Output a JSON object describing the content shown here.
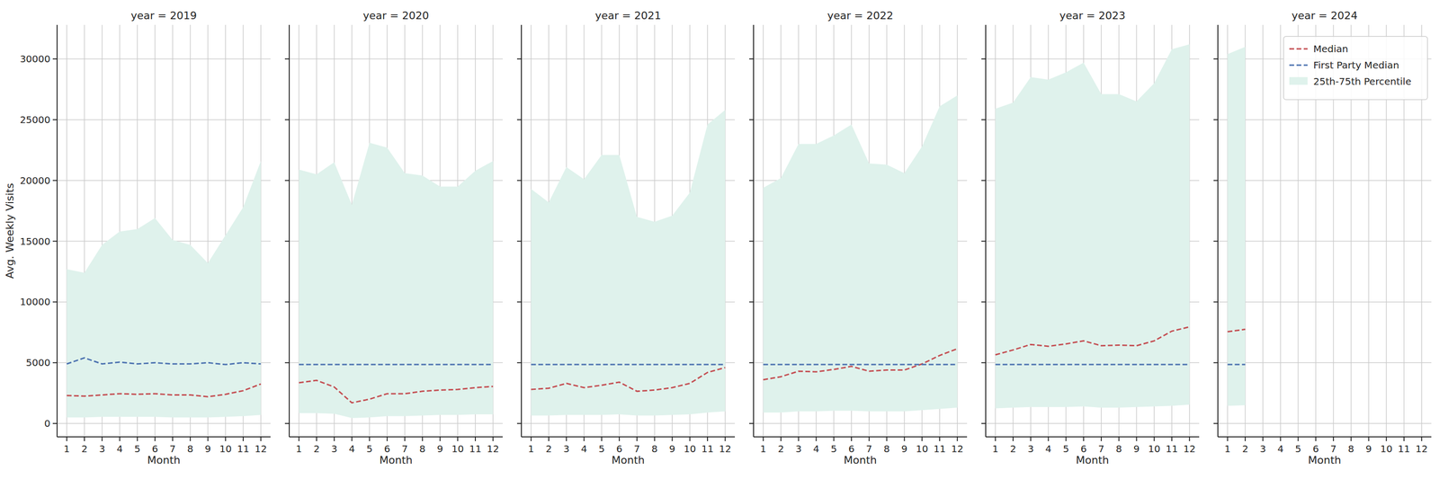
{
  "chart_data": {
    "type": "line",
    "ylabel": "Avg. Weekly Visits",
    "xlabel": "Month",
    "x": [
      1,
      2,
      3,
      4,
      5,
      6,
      7,
      8,
      9,
      10,
      11,
      12
    ],
    "xlim": [
      0.45,
      12.55
    ],
    "xticks": [
      1,
      2,
      3,
      4,
      5,
      6,
      7,
      8,
      9,
      10,
      11,
      12
    ],
    "ylim": [
      -1100,
      32800
    ],
    "yticks": [
      0,
      5000,
      10000,
      15000,
      20000,
      25000,
      30000
    ],
    "grid": true,
    "legend": "upper right",
    "series": [
      {
        "name": "Median",
        "color": "#c44e52",
        "line_style": "dashed",
        "type": "line"
      },
      {
        "name": "First Party Median",
        "color": "#4c72b0",
        "line_style": "dashed",
        "type": "line"
      },
      {
        "name": "25th-75th Percentile",
        "color": "#dff2ec",
        "type": "band"
      }
    ],
    "panels": [
      {
        "title": "year = 2019",
        "series": [
          {
            "values": [
              2300,
              2250,
              2350,
              2450,
              2400,
              2450,
              2350,
              2350,
              2200,
              2400,
              2700,
              3250
            ]
          },
          {
            "values": [
              4900,
              5400,
              4900,
              5050,
              4900,
              5000,
              4900,
              4900,
              5000,
              4850,
              5000,
              4900
            ]
          },
          {
            "lower": [
              500,
              500,
              550,
              550,
              550,
              550,
              500,
              500,
              500,
              550,
              600,
              700
            ],
            "upper": [
              12700,
              12400,
              14700,
              15800,
              16000,
              16900,
              15100,
              14700,
              13200,
              15500,
              17800,
              21600
            ]
          }
        ]
      },
      {
        "title": "year = 2020",
        "series": [
          {
            "values": [
              3350,
              3550,
              3000,
              1700,
              2000,
              2450,
              2450,
              2650,
              2750,
              2800,
              2950,
              3050
            ]
          },
          {
            "values": [
              4850,
              4850,
              4850,
              4850,
              4850,
              4850,
              4850,
              4850,
              4850,
              4850,
              4850,
              4850
            ]
          },
          {
            "lower": [
              850,
              850,
              800,
              450,
              500,
              600,
              600,
              650,
              700,
              700,
              750,
              750
            ],
            "upper": [
              20900,
              20500,
              21500,
              18000,
              23100,
              22700,
              20600,
              20400,
              19500,
              19500,
              20800,
              21600
            ]
          }
        ]
      },
      {
        "title": "year = 2021",
        "series": [
          {
            "values": [
              2800,
              2900,
              3300,
              2950,
              3150,
              3400,
              2650,
              2750,
              2950,
              3300,
              4200,
              4600
            ]
          },
          {
            "values": [
              4850,
              4850,
              4850,
              4850,
              4850,
              4850,
              4850,
              4850,
              4850,
              4850,
              4850,
              4850
            ]
          },
          {
            "lower": [
              650,
              650,
              700,
              700,
              700,
              750,
              650,
              650,
              700,
              750,
              900,
              1000
            ],
            "upper": [
              19300,
              18200,
              21100,
              20100,
              22100,
              22100,
              17000,
              16600,
              17100,
              19000,
              24600,
              25800
            ]
          }
        ]
      },
      {
        "title": "year = 2022",
        "series": [
          {
            "values": [
              3600,
              3850,
              4300,
              4250,
              4450,
              4700,
              4300,
              4400,
              4400,
              4900,
              5600,
              6150
            ]
          },
          {
            "values": [
              4850,
              4850,
              4850,
              4850,
              4850,
              4850,
              4850,
              4850,
              4850,
              4850,
              4850,
              4850
            ]
          },
          {
            "lower": [
              900,
              900,
              1000,
              1000,
              1050,
              1050,
              1000,
              1000,
              1000,
              1100,
              1200,
              1300
            ],
            "upper": [
              19400,
              20200,
              23000,
              23000,
              23700,
              24600,
              21400,
              21300,
              20600,
              22800,
              26100,
              27000
            ]
          }
        ]
      },
      {
        "title": "year = 2023",
        "series": [
          {
            "values": [
              5650,
              6050,
              6500,
              6350,
              6550,
              6800,
              6400,
              6450,
              6400,
              6800,
              7600,
              7950
            ]
          },
          {
            "values": [
              4850,
              4850,
              4850,
              4850,
              4850,
              4850,
              4850,
              4850,
              4850,
              4850,
              4850,
              4850
            ]
          },
          {
            "lower": [
              1250,
              1300,
              1350,
              1350,
              1350,
              1400,
              1300,
              1300,
              1350,
              1400,
              1450,
              1550
            ],
            "upper": [
              25900,
              26400,
              28500,
              28300,
              28900,
              29700,
              27100,
              27100,
              26500,
              28000,
              30800,
              31200
            ]
          }
        ]
      },
      {
        "title": "year = 2024",
        "series": [
          {
            "values": [
              7550,
              7750,
              null,
              null,
              null,
              null,
              null,
              null,
              null,
              null,
              null,
              null
            ]
          },
          {
            "values": [
              4850,
              4850,
              null,
              null,
              null,
              null,
              null,
              null,
              null,
              null,
              null,
              null
            ]
          },
          {
            "lower": [
              1450,
              1500,
              null,
              null,
              null,
              null,
              null,
              null,
              null,
              null,
              null,
              null
            ],
            "upper": [
              30400,
              31000,
              null,
              null,
              null,
              null,
              null,
              null,
              null,
              null,
              null,
              null
            ]
          }
        ]
      }
    ]
  }
}
